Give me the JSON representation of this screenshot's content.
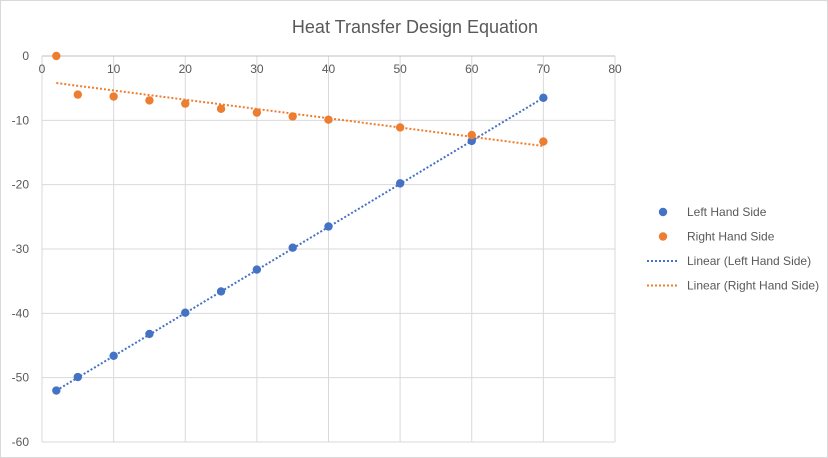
{
  "chart_data": {
    "type": "scatter",
    "title": "Heat Transfer Design Equation",
    "xlim": [
      0,
      80
    ],
    "ylim": [
      -60,
      0
    ],
    "x_ticks": [
      "0",
      "10",
      "20",
      "30",
      "40",
      "50",
      "60",
      "70",
      "80"
    ],
    "y_ticks": [
      "0",
      "-10",
      "-20",
      "-30",
      "-40",
      "-50",
      "-60"
    ],
    "grid": true,
    "legend_position": "right",
    "series": [
      {
        "name": "Left Hand Side",
        "color": "#4472C4",
        "points": [
          [
            2,
            -52.0
          ],
          [
            5,
            -49.9
          ],
          [
            10,
            -46.6
          ],
          [
            15,
            -43.2
          ],
          [
            20,
            -39.9
          ],
          [
            25,
            -36.6
          ],
          [
            30,
            -33.2
          ],
          [
            35,
            -29.8
          ],
          [
            40,
            -26.5
          ],
          [
            50,
            -19.8
          ],
          [
            60,
            -13.2
          ],
          [
            70,
            -6.5
          ]
        ]
      },
      {
        "name": "Right Hand Side",
        "color": "#ED7D31",
        "points": [
          [
            2,
            0.0
          ],
          [
            5,
            -6.0
          ],
          [
            10,
            -6.3
          ],
          [
            15,
            -6.9
          ],
          [
            20,
            -7.4
          ],
          [
            25,
            -8.2
          ],
          [
            30,
            -8.8
          ],
          [
            35,
            -9.4
          ],
          [
            40,
            -9.9
          ],
          [
            50,
            -11.1
          ],
          [
            60,
            -12.3
          ],
          [
            70,
            -13.3
          ]
        ]
      }
    ],
    "trendlines": [
      {
        "name": "Linear (Left Hand Side)",
        "color": "#4472C4",
        "x_range": [
          2,
          70
        ],
        "y_range": [
          -52.0,
          -6.5
        ]
      },
      {
        "name": "Linear (Right Hand Side)",
        "color": "#ED7D31",
        "x_range": [
          2,
          70
        ],
        "y_range": [
          -4.2,
          -14.0
        ]
      }
    ]
  }
}
